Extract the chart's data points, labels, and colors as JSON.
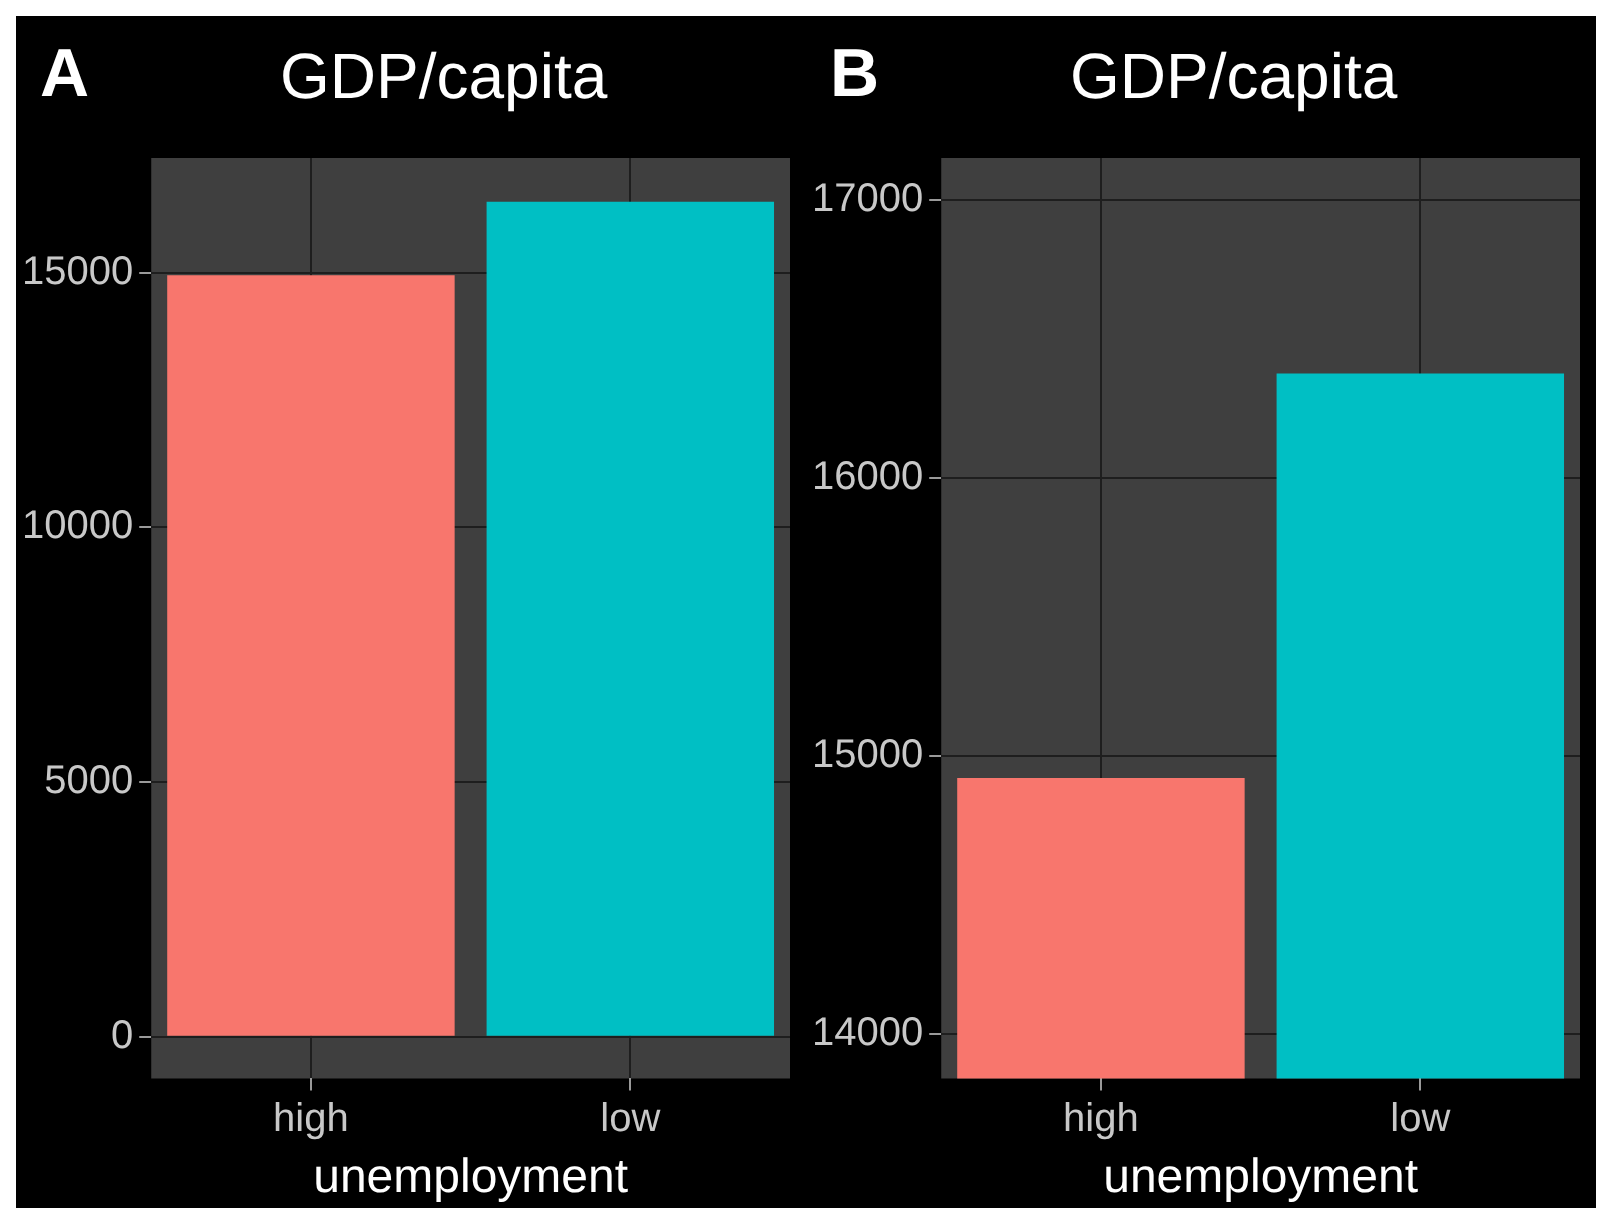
{
  "chart_data": [
    {
      "type": "bar",
      "title": "GDP/capita",
      "annotations": [
        "A"
      ],
      "xlabel": "unemployment",
      "categories": [
        "high",
        "low"
      ],
      "values": [
        14950,
        16390
      ],
      "colors": [
        "#f8766d",
        "#00bfc4"
      ],
      "ylim": [
        -820,
        17250
      ],
      "yticks": [
        0,
        5000,
        10000,
        15000
      ],
      "grid": true
    },
    {
      "type": "bar",
      "title": "GDP/capita",
      "annotations": [
        "B"
      ],
      "xlabel": "unemployment",
      "categories": [
        "high",
        "low"
      ],
      "values": [
        14920,
        16375
      ],
      "colors": [
        "#f8766d",
        "#00bfc4"
      ],
      "ylim": [
        13840,
        17150
      ],
      "yticks": [
        14000,
        15000,
        16000,
        17000
      ],
      "grid": true
    }
  ]
}
